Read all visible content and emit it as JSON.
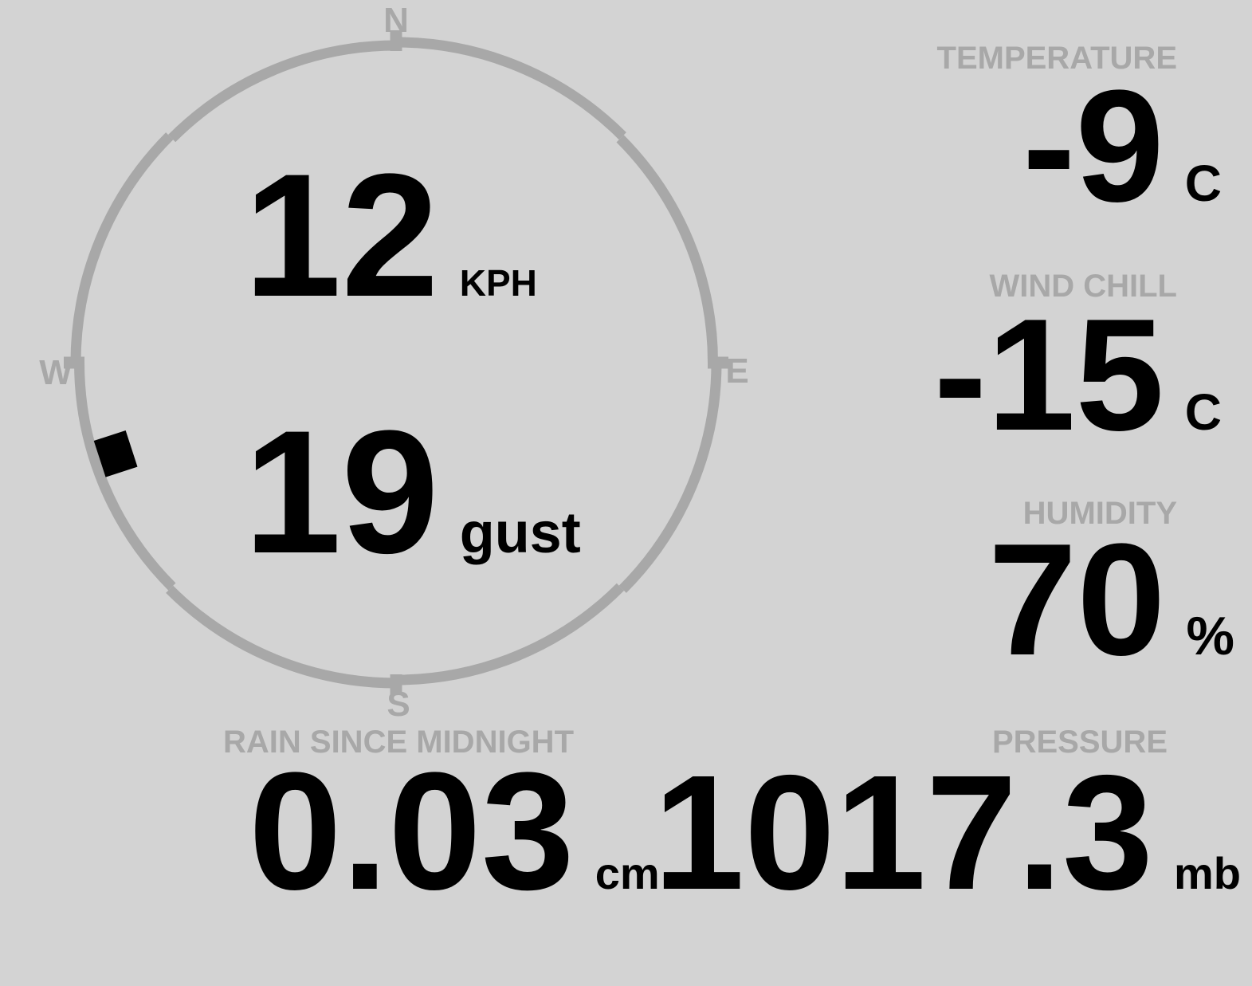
{
  "colors": {
    "background": "#d3d3d3",
    "muted": "#a8a8a8",
    "text": "#000000"
  },
  "compass": {
    "cardinals": {
      "north": "N",
      "east": "E",
      "south": "S",
      "west": "W"
    },
    "wind": {
      "speed": "12",
      "speed_unit": "KPH",
      "gust": "19",
      "gust_unit": "gust",
      "direction_deg": 252
    }
  },
  "metrics": {
    "temperature": {
      "label": "TEMPERATURE",
      "value": "-9",
      "unit": "C"
    },
    "wind_chill": {
      "label": "WIND CHILL",
      "value": "-15",
      "unit": "C"
    },
    "humidity": {
      "label": "HUMIDITY",
      "value": "70",
      "unit": "%"
    },
    "rain_since_midnight": {
      "label": "RAIN SINCE MIDNIGHT",
      "value": "0.03",
      "unit": "cm"
    },
    "pressure": {
      "label": "PRESSURE",
      "value": "1017.3",
      "unit": "mb"
    }
  }
}
